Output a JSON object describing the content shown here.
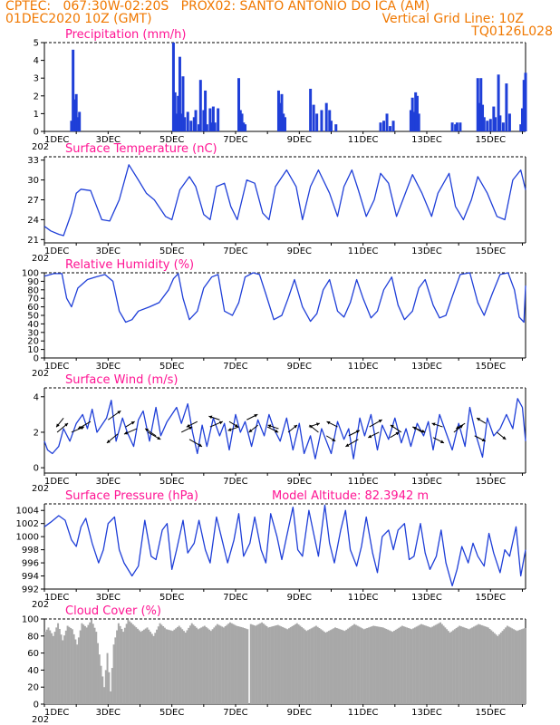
{
  "header": {
    "line1": "CPTEC:   067:30W-02:20S   PROX02: SANTO ANTONIO DO ICA (AM)",
    "line2_left": "01DEC2020 10Z (GMT)",
    "line2_right": "Vertical Grid Line: 10Z",
    "line3_right": "TQ0126L028"
  },
  "colors": {
    "header": "#f07800",
    "title": "#ff1493",
    "series": "#1f3fd8",
    "cloud": "#a8a8a8",
    "axis": "#000000"
  },
  "x_axis": {
    "labels": [
      "1DEC",
      "3DEC",
      "5DEC",
      "7DEC",
      "9DEC",
      "11DEC",
      "13DEC",
      "15DEC"
    ],
    "label_days": [
      0,
      2,
      4,
      6,
      8,
      10,
      12,
      14
    ],
    "truncated_year": "202",
    "range_days": [
      0,
      15.1
    ]
  },
  "chart_data": [
    {
      "type": "bar",
      "title": "Precipitation (mm/h)",
      "ylim": [
        0,
        5
      ],
      "yticks": [
        0,
        1,
        2,
        3,
        4,
        5
      ],
      "x_days": [
        0.85,
        0.9,
        0.95,
        1.0,
        1.05,
        1.1,
        4.05,
        4.1,
        4.15,
        4.2,
        4.25,
        4.3,
        4.35,
        4.4,
        4.5,
        4.6,
        4.7,
        4.75,
        4.85,
        4.9,
        5.0,
        5.05,
        5.1,
        5.2,
        5.25,
        5.3,
        5.35,
        5.45,
        6.1,
        6.15,
        6.2,
        6.25,
        6.3,
        7.35,
        7.4,
        7.45,
        7.5,
        7.55,
        8.35,
        8.45,
        8.55,
        8.7,
        8.85,
        8.95,
        9.0,
        9.15,
        10.55,
        10.65,
        10.75,
        10.85,
        10.95,
        11.5,
        11.55,
        11.6,
        11.65,
        11.7,
        11.75,
        12.8,
        12.9,
        12.95,
        13.05,
        13.6,
        13.65,
        13.7,
        13.75,
        13.8,
        13.9,
        14.0,
        14.1,
        14.15,
        14.25,
        14.3,
        14.4,
        14.5,
        14.6,
        14.95,
        15.0,
        15.05,
        15.1
      ],
      "values": [
        0.6,
        4.6,
        1.8,
        2.1,
        0.8,
        1.1,
        5.0,
        2.2,
        1.0,
        2.0,
        4.2,
        1.0,
        3.1,
        0.8,
        1.1,
        0.6,
        0.8,
        1.2,
        0.4,
        2.9,
        1.2,
        2.3,
        0.4,
        1.3,
        0.5,
        1.4,
        0.5,
        1.3,
        3.0,
        1.2,
        1.0,
        0.5,
        0.4,
        2.3,
        1.6,
        2.1,
        1.0,
        0.8,
        2.4,
        1.5,
        1.0,
        1.2,
        1.6,
        1.2,
        0.6,
        0.4,
        0.5,
        0.6,
        1.0,
        0.3,
        0.6,
        1.2,
        1.9,
        1.1,
        2.2,
        2.0,
        1.0,
        0.5,
        0.4,
        0.5,
        0.5,
        3.0,
        1.6,
        3.0,
        1.5,
        0.8,
        0.6,
        0.7,
        1.4,
        0.8,
        3.2,
        0.9,
        0.5,
        2.7,
        1.0,
        0.4,
        1.3,
        2.9,
        3.3
      ],
      "xlabel": "",
      "ylabel": ""
    },
    {
      "type": "line",
      "title": "Surface Temperature (nC)",
      "ylim": [
        20.5,
        33.5
      ],
      "yticks": [
        21,
        24,
        27,
        30,
        33
      ],
      "x_days": [
        0,
        0.2,
        0.45,
        0.6,
        0.85,
        1.0,
        1.15,
        1.45,
        1.6,
        1.8,
        2.05,
        2.35,
        2.65,
        2.95,
        3.2,
        3.45,
        3.8,
        4.0,
        4.25,
        4.55,
        4.75,
        5.0,
        5.2,
        5.4,
        5.65,
        5.85,
        6.05,
        6.35,
        6.6,
        6.85,
        7.05,
        7.25,
        7.6,
        7.9,
        8.1,
        8.35,
        8.6,
        8.95,
        9.2,
        9.4,
        9.65,
        9.85,
        10.1,
        10.35,
        10.55,
        10.8,
        11.05,
        11.25,
        11.55,
        11.85,
        12.15,
        12.35,
        12.7,
        12.9,
        13.15,
        13.4,
        13.6,
        13.9,
        14.2,
        14.45,
        14.7,
        14.95,
        15.1
      ],
      "values": [
        23,
        22.3,
        21.8,
        21.6,
        25,
        28,
        28.6,
        28.4,
        26.5,
        24,
        23.8,
        27,
        32.3,
        30,
        28,
        27,
        24.5,
        24,
        28.5,
        30.5,
        29,
        24.8,
        24,
        29,
        29.5,
        26,
        24,
        30,
        29.5,
        25,
        24,
        29,
        31.5,
        29,
        24,
        29,
        31.5,
        28,
        24.5,
        29,
        31.5,
        28.5,
        24.5,
        27,
        31,
        29.5,
        24.5,
        27,
        30.8,
        28,
        24.5,
        28,
        31,
        26,
        24,
        27,
        30.5,
        28,
        24.5,
        24,
        30,
        31.5,
        28.5
      ],
      "xlabel": "",
      "ylabel": ""
    },
    {
      "type": "line",
      "title": "Relative Humidity (%)",
      "ylim": [
        0,
        100
      ],
      "yticks": [
        0,
        10,
        20,
        30,
        40,
        50,
        60,
        70,
        80,
        90,
        100
      ],
      "x_days": [
        0,
        0.3,
        0.55,
        0.7,
        0.85,
        1.05,
        1.35,
        1.6,
        1.9,
        2.15,
        2.35,
        2.55,
        2.75,
        2.95,
        3.3,
        3.6,
        3.9,
        4.05,
        4.2,
        4.35,
        4.55,
        4.8,
        5.0,
        5.25,
        5.45,
        5.65,
        5.9,
        6.1,
        6.3,
        6.55,
        6.75,
        6.95,
        7.2,
        7.45,
        7.65,
        7.85,
        8.1,
        8.35,
        8.55,
        8.75,
        8.95,
        9.2,
        9.4,
        9.6,
        9.8,
        10.0,
        10.25,
        10.45,
        10.65,
        10.9,
        11.1,
        11.3,
        11.55,
        11.75,
        11.95,
        12.2,
        12.4,
        12.6,
        12.8,
        13.05,
        13.35,
        13.6,
        13.8,
        14.05,
        14.3,
        14.55,
        14.75,
        14.9,
        15.05,
        15.1
      ],
      "values": [
        96,
        99,
        99,
        70,
        60,
        82,
        92,
        95,
        98,
        90,
        55,
        42,
        45,
        55,
        60,
        65,
        80,
        93,
        99,
        70,
        45,
        55,
        82,
        95,
        98,
        55,
        50,
        65,
        95,
        100,
        98,
        75,
        45,
        50,
        70,
        92,
        60,
        43,
        52,
        80,
        92,
        55,
        48,
        65,
        92,
        70,
        47,
        55,
        80,
        95,
        62,
        45,
        55,
        82,
        92,
        62,
        47,
        50,
        72,
        98,
        100,
        65,
        50,
        75,
        98,
        100,
        80,
        48,
        42,
        85
      ],
      "xlabel": "",
      "ylabel": ""
    },
    {
      "type": "line",
      "title": "Surface Wind (m/s)",
      "ylim": [
        -0.3,
        4.5
      ],
      "yticks": [
        0,
        2,
        4
      ],
      "x_days": [
        0,
        0.1,
        0.25,
        0.45,
        0.6,
        0.8,
        1.0,
        1.2,
        1.35,
        1.5,
        1.65,
        1.8,
        1.95,
        2.1,
        2.25,
        2.45,
        2.6,
        2.8,
        2.95,
        3.1,
        3.3,
        3.5,
        3.65,
        3.85,
        4.0,
        4.15,
        4.3,
        4.5,
        4.65,
        4.8,
        4.95,
        5.1,
        5.3,
        5.5,
        5.65,
        5.8,
        6.0,
        6.15,
        6.3,
        6.5,
        6.7,
        6.9,
        7.05,
        7.2,
        7.4,
        7.6,
        7.8,
        8.0,
        8.15,
        8.35,
        8.5,
        8.7,
        8.85,
        9.0,
        9.2,
        9.4,
        9.55,
        9.7,
        9.9,
        10.05,
        10.25,
        10.45,
        10.6,
        10.8,
        11.0,
        11.2,
        11.35,
        11.5,
        11.7,
        11.9,
        12.05,
        12.2,
        12.4,
        12.6,
        12.8,
        13.0,
        13.2,
        13.35,
        13.55,
        13.75,
        13.9,
        14.1,
        14.3,
        14.5,
        14.7,
        14.85,
        15.0,
        15.1
      ],
      "values": [
        1.5,
        1.0,
        0.8,
        1.2,
        2.2,
        1.5,
        2.5,
        3.0,
        2.2,
        3.3,
        2.0,
        2.4,
        2.8,
        3.8,
        1.5,
        2.8,
        2.0,
        1.2,
        2.7,
        3.2,
        1.5,
        3.4,
        1.8,
        2.6,
        3.0,
        3.4,
        2.5,
        3.6,
        2.0,
        0.8,
        2.4,
        1.2,
        2.8,
        1.8,
        2.5,
        1.0,
        3.0,
        2.0,
        2.6,
        1.2,
        2.7,
        1.8,
        3.0,
        2.2,
        1.5,
        2.8,
        1.0,
        2.5,
        0.8,
        1.8,
        0.5,
        2.2,
        1.5,
        0.8,
        2.6,
        1.6,
        2.2,
        0.5,
        2.8,
        1.8,
        3.0,
        1.0,
        2.4,
        1.6,
        2.8,
        1.4,
        2.2,
        1.2,
        2.5,
        1.8,
        2.6,
        1.0,
        3.0,
        2.0,
        1.0,
        2.5,
        1.2,
        3.4,
        1.8,
        0.6,
        2.8,
        1.8,
        2.2,
        3.0,
        2.2,
        3.9,
        3.4,
        1.5
      ],
      "xlabel": "",
      "ylabel": ""
    },
    {
      "type": "line",
      "title": "Surface Pressure (hPa)",
      "annotation": "Model Altitude: 82.3942  m",
      "ylim": [
        992,
        1005
      ],
      "yticks": [
        992,
        994,
        996,
        998,
        1000,
        1002,
        1004
      ],
      "x_days": [
        0,
        0.2,
        0.45,
        0.65,
        0.85,
        1.0,
        1.15,
        1.3,
        1.5,
        1.7,
        1.85,
        2.0,
        2.2,
        2.35,
        2.5,
        2.75,
        2.95,
        3.15,
        3.35,
        3.5,
        3.7,
        3.85,
        4.0,
        4.15,
        4.35,
        4.5,
        4.7,
        4.85,
        5.05,
        5.2,
        5.4,
        5.55,
        5.75,
        5.95,
        6.1,
        6.25,
        6.45,
        6.6,
        6.8,
        6.95,
        7.1,
        7.3,
        7.45,
        7.6,
        7.8,
        7.95,
        8.1,
        8.3,
        8.45,
        8.6,
        8.8,
        8.95,
        9.1,
        9.3,
        9.45,
        9.6,
        9.8,
        9.95,
        10.1,
        10.3,
        10.45,
        10.6,
        10.8,
        10.95,
        11.1,
        11.3,
        11.45,
        11.6,
        11.8,
        11.95,
        12.1,
        12.3,
        12.45,
        12.6,
        12.8,
        12.95,
        13.1,
        13.3,
        13.45,
        13.6,
        13.8,
        13.95,
        14.1,
        14.3,
        14.45,
        14.6,
        14.8,
        14.95,
        15.1
      ],
      "values": [
        1001.5,
        1002.2,
        1003.2,
        1002.5,
        999.5,
        998.5,
        1001.5,
        1002.8,
        999.0,
        996.0,
        998.0,
        1002.0,
        1003.0,
        998.0,
        996.0,
        994.0,
        995.5,
        1002.5,
        997.0,
        996.5,
        1001.0,
        1002.0,
        995.0,
        998.0,
        1002.5,
        997.5,
        999.0,
        1002.5,
        998.0,
        996.0,
        1003.0,
        1000.0,
        996.0,
        999.5,
        1003.5,
        997.0,
        999.0,
        1003.0,
        998.0,
        996.0,
        1003.5,
        1000.0,
        996.5,
        1000.0,
        1004.5,
        998.0,
        997.0,
        1004.0,
        1000.5,
        997.0,
        1004.8,
        999.0,
        996.0,
        1001.0,
        1004.0,
        998.0,
        995.5,
        998.5,
        1003.0,
        997.5,
        994.5,
        1000.0,
        1001.0,
        998.0,
        1001.0,
        1002.0,
        996.5,
        997.0,
        1002.0,
        997.5,
        995.0,
        997.0,
        1001.0,
        996.0,
        992.5,
        995.0,
        998.5,
        996.0,
        999.0,
        997.0,
        995.5,
        1000.5,
        997.5,
        994.5,
        998.0,
        997.0,
        1001.5,
        994.0,
        998.0
      ],
      "xlabel": "",
      "ylabel": ""
    },
    {
      "type": "area",
      "title": "Cloud Cover (%)",
      "ylim": [
        0,
        100
      ],
      "yticks": [
        0,
        20,
        40,
        60,
        80,
        100
      ],
      "x_days": [
        0,
        0.1,
        0.25,
        0.4,
        0.55,
        0.7,
        0.85,
        1.0,
        1.15,
        1.3,
        1.45,
        1.6,
        1.75,
        1.85,
        1.95,
        2.05,
        2.15,
        2.3,
        2.45,
        2.6,
        2.8,
        3.0,
        3.2,
        3.4,
        3.6,
        3.8,
        4.0,
        4.2,
        4.4,
        4.6,
        4.8,
        5.0,
        5.2,
        5.4,
        5.6,
        5.8,
        6.0,
        6.2,
        6.35,
        6.4,
        6.45,
        6.6,
        6.8,
        7.0,
        7.3,
        7.6,
        7.9,
        8.2,
        8.5,
        8.8,
        9.1,
        9.4,
        9.7,
        10.0,
        10.3,
        10.6,
        10.9,
        11.2,
        11.5,
        11.8,
        12.1,
        12.4,
        12.7,
        13.0,
        13.3,
        13.6,
        13.9,
        14.2,
        14.5,
        14.8,
        15.1
      ],
      "values": [
        85,
        90,
        80,
        95,
        75,
        92,
        88,
        70,
        95,
        90,
        99,
        85,
        45,
        20,
        60,
        15,
        70,
        95,
        85,
        99,
        92,
        85,
        90,
        80,
        95,
        88,
        86,
        92,
        84,
        95,
        88,
        92,
        86,
        94,
        90,
        96,
        92,
        90,
        88,
        0,
        94,
        92,
        96,
        90,
        93,
        88,
        95,
        86,
        92,
        84,
        90,
        86,
        94,
        88,
        92,
        90,
        85,
        92,
        88,
        94,
        90,
        96,
        84,
        92,
        88,
        94,
        90,
        80,
        92,
        86,
        90
      ],
      "xlabel": "",
      "ylabel": ""
    }
  ],
  "wind_arrows": {
    "x_days": [
      0.4,
      0.6,
      0.85,
      1.45,
      2.0,
      2.3,
      2.55,
      2.9,
      3.25,
      3.5,
      4.3,
      4.55,
      4.8,
      5.2,
      5.5,
      5.8,
      6.1,
      6.35,
      6.7,
      7.0,
      7.35,
      7.65,
      8.3,
      8.6,
      8.85,
      9.2,
      9.55,
      9.85,
      10.2,
      10.5,
      10.85,
      11.2,
      11.55,
      11.85,
      12.2,
      12.5,
      12.85,
      13.2,
      13.5,
      13.85,
      14.2
    ],
    "y_values": [
      2.0,
      2.8,
      2.0,
      2.6,
      2.7,
      1.9,
      2.3,
      2.2,
      2.0,
      1.8,
      2.0,
      1.6,
      2.6,
      2.3,
      2.7,
      2.6,
      2.3,
      2.7,
      2.4,
      2.3,
      2.2,
      2.0,
      2.3,
      2.0,
      1.8,
      2.3,
      1.8,
      1.6,
      2.3,
      2.0,
      1.7,
      2.0,
      2.3,
      2.0,
      1.7,
      2.3,
      2.0,
      2.5,
      1.8,
      2.5,
      2.0
    ],
    "dx": [
      12,
      -8,
      14,
      -14,
      14,
      -12,
      10,
      -14,
      14,
      -12,
      12,
      14,
      -12,
      14,
      -12,
      10,
      -12,
      12,
      -10,
      12,
      -12,
      10,
      12,
      -10,
      10,
      -12,
      12,
      -14,
      14,
      -12,
      10,
      -12,
      14,
      -10,
      12,
      -12,
      10,
      -10,
      12,
      -10,
      10
    ],
    "dy": [
      -10,
      10,
      -6,
      8,
      -10,
      10,
      -6,
      6,
      8,
      -8,
      -6,
      8,
      6,
      -6,
      -4,
      6,
      4,
      -6,
      8,
      6,
      -4,
      -8,
      -4,
      -8,
      6,
      -6,
      -6,
      8,
      -8,
      6,
      -6,
      -8,
      6,
      -6,
      6,
      -4,
      -8,
      6,
      6,
      -6,
      8
    ]
  }
}
